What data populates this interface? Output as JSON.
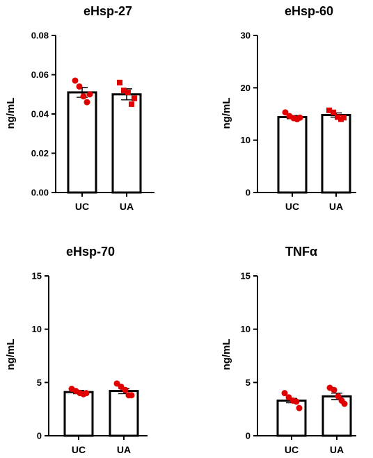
{
  "chart_data": [
    {
      "type": "bar",
      "title": "eHsp-27",
      "ylabel": "ng/mL",
      "xlabel": "",
      "categories": [
        "UC",
        "UA"
      ],
      "values": [
        0.051,
        0.05
      ],
      "sem": [
        0.0025,
        0.0028
      ],
      "points": [
        [
          0.057,
          0.054,
          0.049,
          0.046,
          0.05
        ],
        [
          0.056,
          0.052,
          0.051,
          0.045,
          0.048
        ]
      ],
      "marker_shapes": [
        "circle",
        "square"
      ],
      "ylim": [
        0,
        0.08
      ],
      "yticks": [
        "0.00",
        "0.02",
        "0.04",
        "0.06",
        "0.08"
      ],
      "ytick_values": [
        0,
        0.02,
        0.04,
        0.06,
        0.08
      ],
      "grid": false,
      "point_color": "#e00000"
    },
    {
      "type": "bar",
      "title": "eHsp-60",
      "ylabel": "ng/mL",
      "xlabel": "",
      "categories": [
        "UC",
        "UA"
      ],
      "values": [
        14.4,
        14.8
      ],
      "sem": [
        0.3,
        0.4
      ],
      "points": [
        [
          15.3,
          14.6,
          14.2,
          14.0,
          14.3
        ],
        [
          15.7,
          15.3,
          14.4,
          14.0,
          14.3
        ]
      ],
      "marker_shapes": [
        "circle",
        "square"
      ],
      "ylim": [
        0,
        30
      ],
      "yticks": [
        "0",
        "10",
        "20",
        "30"
      ],
      "ytick_values": [
        0,
        10,
        20,
        30
      ],
      "grid": false,
      "point_color": "#e00000"
    },
    {
      "type": "bar",
      "title": "eHsp-70",
      "ylabel": "ng/mL",
      "xlabel": "",
      "categories": [
        "UC",
        "UA"
      ],
      "values": [
        4.1,
        4.2
      ],
      "sem": [
        0.15,
        0.25
      ],
      "points": [
        [
          4.4,
          4.2,
          4.0,
          3.9,
          4.0
        ],
        [
          4.9,
          4.6,
          4.3,
          3.8,
          3.8
        ]
      ],
      "marker_shapes": [
        "circle",
        "circle"
      ],
      "ylim": [
        0,
        15
      ],
      "yticks": [
        "0",
        "5",
        "10",
        "15"
      ],
      "ytick_values": [
        0,
        5,
        10,
        15
      ],
      "grid": false,
      "point_color": "#e00000"
    },
    {
      "type": "bar",
      "title": "TNFα",
      "ylabel": "ng/mL",
      "xlabel": "",
      "categories": [
        "UC",
        "UA"
      ],
      "values": [
        3.3,
        3.7
      ],
      "sem": [
        0.2,
        0.3
      ],
      "points": [
        [
          4.0,
          3.6,
          3.3,
          3.2,
          2.6
        ],
        [
          4.5,
          4.3,
          3.7,
          3.3,
          3.0
        ]
      ],
      "marker_shapes": [
        "circle",
        "circle"
      ],
      "ylim": [
        0,
        15
      ],
      "yticks": [
        "0",
        "5",
        "10",
        "15"
      ],
      "ytick_values": [
        0,
        5,
        10,
        15
      ],
      "grid": false,
      "point_color": "#e00000"
    }
  ]
}
